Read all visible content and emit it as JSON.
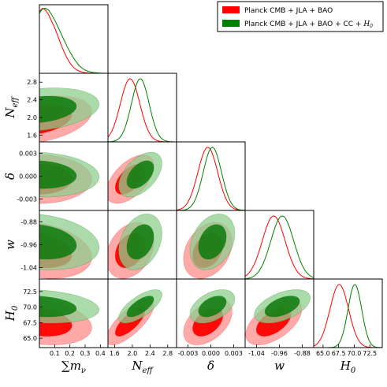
{
  "chart_data": {
    "type": "triangle-corner-plot",
    "parameters": [
      {
        "key": "mnu",
        "label": "∑m",
        "label_sub": "ν",
        "ticks": [
          "0.1",
          "0.2",
          "0.3",
          "0.4"
        ],
        "tick_values": [
          0.1,
          0.2,
          0.3,
          0.4
        ],
        "range": [
          0.0,
          0.45
        ]
      },
      {
        "key": "neff",
        "label": "N",
        "label_sub": "eff",
        "ticks": [
          "1.6",
          "2.0",
          "2.4",
          "2.8"
        ],
        "tick_values": [
          1.6,
          2.0,
          2.4,
          2.8
        ],
        "range": [
          1.45,
          3.0
        ]
      },
      {
        "key": "delta",
        "label": "δ",
        "label_sub": "",
        "ticks": [
          "-0.003",
          "0.000",
          "0.003"
        ],
        "tick_values": [
          -0.003,
          0.0,
          0.003
        ],
        "range": [
          -0.0045,
          0.0045
        ]
      },
      {
        "key": "w",
        "label": "w",
        "label_sub": "",
        "ticks": [
          "-1.04",
          "-0.96",
          "-0.88"
        ],
        "tick_values": [
          -1.04,
          -0.96,
          -0.88
        ],
        "range": [
          -1.08,
          -0.84
        ]
      },
      {
        "key": "h0",
        "label": "H",
        "label_sub": "0",
        "ticks": [
          "65.0",
          "67.5",
          "70.0",
          "72.5"
        ],
        "tick_values": [
          65.0,
          67.5,
          70.0,
          72.5
        ],
        "range": [
          63.5,
          74.5
        ]
      }
    ],
    "legend": {
      "position": "top-right",
      "entries": [
        {
          "label": "Planck CMB + JLA + BAO",
          "color": "#ff0000"
        },
        {
          "label": "Planck CMB + JLA + BAO + CC + ",
          "label_math": "H",
          "label_math_sub": "0",
          "color": "#008000"
        }
      ]
    },
    "series": [
      {
        "name": "Planck CMB + JLA + BAO",
        "color": "#ff0000",
        "fill_inner": "#ff0000",
        "fill_outer": "#ff9a9a",
        "mean": {
          "mnu": 0.0,
          "neff": 1.95,
          "delta": -0.0004,
          "w": -0.98,
          "h0": 67.6
        },
        "sd": {
          "mnu": 0.14,
          "neff": 0.22,
          "delta": 0.0013,
          "w": 0.04,
          "h0": 1.5
        },
        "corr": {
          "neff|mnu": 0.35,
          "delta|mnu": 0.0,
          "delta|neff": 0.55,
          "w|mnu": -0.25,
          "w|neff": 0.3,
          "w|delta": 0.3,
          "h0|mnu": -0.25,
          "h0|neff": 0.75,
          "h0|delta": 0.45,
          "h0|w": 0.55
        },
        "mnu_marginal": {
          "x": [
            0.0,
            0.02,
            0.04,
            0.06,
            0.08,
            0.1,
            0.12,
            0.14,
            0.16,
            0.18,
            0.2,
            0.22,
            0.24,
            0.26,
            0.28,
            0.3,
            0.32,
            0.35,
            0.4,
            0.45
          ],
          "y": [
            0.95,
            1.0,
            0.97,
            0.9,
            0.8,
            0.7,
            0.58,
            0.45,
            0.34,
            0.24,
            0.16,
            0.1,
            0.06,
            0.035,
            0.02,
            0.01,
            0.005,
            0.002,
            0.0,
            0.0
          ]
        }
      },
      {
        "name": "Planck CMB + JLA + BAO + CC + H0",
        "color": "#008000",
        "fill_inner": "#0b7a0b",
        "fill_outer": "#8fce8f",
        "mean": {
          "mnu": 0.0,
          "neff": 2.18,
          "delta": 0.0002,
          "w": -0.95,
          "h0": 70.1
        },
        "sd": {
          "mnu": 0.16,
          "neff": 0.2,
          "delta": 0.0012,
          "w": 0.04,
          "h0": 1.1
        },
        "corr": {
          "neff|mnu": 0.25,
          "delta|mnu": -0.1,
          "delta|neff": 0.5,
          "w|mnu": -0.2,
          "w|neff": 0.3,
          "w|delta": 0.3,
          "h0|mnu": -0.2,
          "h0|neff": 0.7,
          "h0|delta": 0.45,
          "h0|w": 0.5
        },
        "mnu_marginal": {
          "x": [
            0.0,
            0.02,
            0.04,
            0.06,
            0.08,
            0.1,
            0.12,
            0.14,
            0.16,
            0.18,
            0.2,
            0.22,
            0.24,
            0.26,
            0.28,
            0.3,
            0.32,
            0.35,
            0.4,
            0.45
          ],
          "y": [
            0.92,
            0.99,
            1.0,
            0.97,
            0.9,
            0.82,
            0.72,
            0.62,
            0.52,
            0.42,
            0.33,
            0.25,
            0.18,
            0.12,
            0.08,
            0.05,
            0.03,
            0.012,
            0.002,
            0.0
          ]
        }
      }
    ]
  }
}
